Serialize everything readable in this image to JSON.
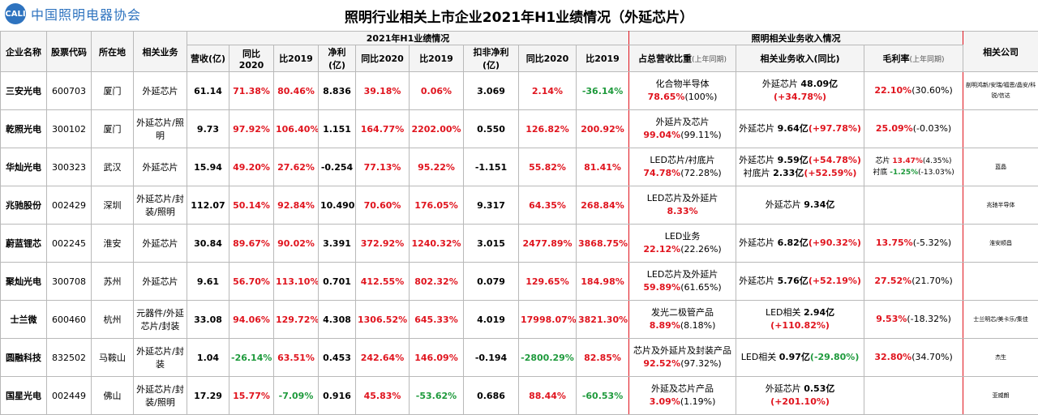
{
  "logo": {
    "badge": "CALI",
    "text": "中国照明电器协会"
  },
  "title": "照明行业相关上市企业2021年H1业绩情况（外延芯片）",
  "group_headers": {
    "h1_performance": "2021年H1业绩情况",
    "lighting_revenue": "照明相关业务收入情况"
  },
  "columns": {
    "company": "企业名称",
    "code": "股票代码",
    "location": "所在地",
    "business": "相关业务",
    "revenue": "营收(亿)",
    "yoy2020": "同比2020",
    "vs2019": "比2019",
    "net_profit": "净利(亿)",
    "np_yoy2020": "同比2020",
    "np_vs2019": "比2019",
    "deducted": "扣非净利(亿)",
    "d_yoy2020": "同比2020",
    "d_vs2019": "比2019",
    "share_main": "占总营收比重",
    "share_sub": "(上年同期)",
    "biz_rev": "相关业务收入(同比)",
    "margin_main": "毛利率",
    "margin_sub": "(上年同期)",
    "related": "相关公司"
  },
  "rows": [
    {
      "company": "三安光电",
      "code": "600703",
      "location": "厦门",
      "business": "外延芯片",
      "revenue": "61.14",
      "yoy2020": "71.38%",
      "vs2019": "80.46%",
      "net_profit": "8.836",
      "np_yoy2020": "39.18%",
      "np_vs2019": "0.06%",
      "deducted": "3.069",
      "d_yoy2020": "2.14%",
      "d_vs2019": "-36.14%",
      "share_label": "化合物半导体",
      "share_pct": "78.65%",
      "share_prev": "(100%)",
      "biz_lines": [
        {
          "label": "外延芯片 ",
          "amount": "48.09亿",
          "change": "(+34.78%)"
        }
      ],
      "margin_lines": [
        {
          "label": "",
          "value": "22.10%",
          "prev": "(30.60%)"
        }
      ],
      "related": "剖明鸿新/安瑞/福恩/晶安/科锐/信达"
    },
    {
      "company": "乾照光电",
      "code": "300102",
      "location": "厦门",
      "business": "外延芯片/照明",
      "revenue": "9.73",
      "yoy2020": "97.92%",
      "vs2019": "106.40%",
      "net_profit": "1.151",
      "np_yoy2020": "164.77%",
      "np_vs2019": "2202.00%",
      "deducted": "0.550",
      "d_yoy2020": "126.82%",
      "d_vs2019": "200.92%",
      "share_label": "外延片及芯片",
      "share_pct": "99.04%",
      "share_prev": "(99.11%)",
      "biz_lines": [
        {
          "label": "外延芯片 ",
          "amount": "9.64亿",
          "change": "(+97.78%)"
        }
      ],
      "margin_lines": [
        {
          "label": "",
          "value": "25.09%",
          "prev": "(-0.03%)"
        }
      ],
      "related": ""
    },
    {
      "company": "华灿光电",
      "code": "300323",
      "location": "武汉",
      "business": "外延芯片",
      "revenue": "15.94",
      "yoy2020": "49.20%",
      "vs2019": "27.62%",
      "net_profit": "-0.254",
      "np_yoy2020": "77.13%",
      "np_vs2019": "95.22%",
      "deducted": "-1.151",
      "d_yoy2020": "55.82%",
      "d_vs2019": "81.41%",
      "share_label": "LED芯片/衬底片",
      "share_pct": "74.78%",
      "share_prev": "(72.28%)",
      "biz_lines": [
        {
          "label": "外延芯片 ",
          "amount": "9.59亿",
          "change": "(+54.78%)"
        },
        {
          "label": "衬底片 ",
          "amount": "2.33亿",
          "change": "(+52.59%)"
        }
      ],
      "margin_lines": [
        {
          "label": "芯片 ",
          "value": "13.47%",
          "prev": "(4.35%)"
        },
        {
          "label": "衬底 ",
          "value": "-1.25%",
          "prev": "(-13.03%)"
        }
      ],
      "related": "蓝晶"
    },
    {
      "company": "兆驰股份",
      "code": "002429",
      "location": "深圳",
      "business": "外延芯片/封装/照明",
      "revenue": "112.07",
      "yoy2020": "50.14%",
      "vs2019": "92.84%",
      "net_profit": "10.490",
      "np_yoy2020": "70.60%",
      "np_vs2019": "176.05%",
      "deducted": "9.317",
      "d_yoy2020": "64.35%",
      "d_vs2019": "268.84%",
      "share_label": "LED芯片及外延片",
      "share_pct": "8.33%",
      "share_prev": "",
      "biz_lines": [
        {
          "label": "外延芯片 ",
          "amount": "9.34亿",
          "change": ""
        }
      ],
      "margin_lines": [],
      "related": "兆驰半导体"
    },
    {
      "company": "蔚蓝锂芯",
      "code": "002245",
      "location": "淮安",
      "business": "外延芯片",
      "revenue": "30.84",
      "yoy2020": "89.67%",
      "vs2019": "90.02%",
      "net_profit": "3.391",
      "np_yoy2020": "372.92%",
      "np_vs2019": "1240.32%",
      "deducted": "3.015",
      "d_yoy2020": "2477.89%",
      "d_vs2019": "3868.75%",
      "share_label": "LED业务",
      "share_pct": "22.12%",
      "share_prev": "(22.26%)",
      "biz_lines": [
        {
          "label": "外延芯片 ",
          "amount": "6.82亿",
          "change": "(+90.32%)"
        }
      ],
      "margin_lines": [
        {
          "label": "",
          "value": "13.75%",
          "prev": "(-5.32%)"
        }
      ],
      "related": "淮安顺昌"
    },
    {
      "company": "聚灿光电",
      "code": "300708",
      "location": "苏州",
      "business": "外延芯片",
      "revenue": "9.61",
      "yoy2020": "56.70%",
      "vs2019": "113.10%",
      "net_profit": "0.701",
      "np_yoy2020": "412.55%",
      "np_vs2019": "802.32%",
      "deducted": "0.079",
      "d_yoy2020": "129.65%",
      "d_vs2019": "184.98%",
      "share_label": "LED芯片及外延片",
      "share_pct": "59.89%",
      "share_prev": "(61.65%)",
      "biz_lines": [
        {
          "label": "外延芯片 ",
          "amount": "5.76亿",
          "change": "(+52.19%)"
        }
      ],
      "margin_lines": [
        {
          "label": "",
          "value": "27.52%",
          "prev": "(21.70%)"
        }
      ],
      "related": ""
    },
    {
      "company": "士兰微",
      "code": "600460",
      "location": "杭州",
      "business": "元器件/外延芯片/封装",
      "revenue": "33.08",
      "yoy2020": "94.06%",
      "vs2019": "129.72%",
      "net_profit": "4.308",
      "np_yoy2020": "1306.52%",
      "np_vs2019": "645.33%",
      "deducted": "4.019",
      "d_yoy2020": "17998.07%",
      "d_vs2019": "3821.30%",
      "share_label": "发光二极管产品",
      "share_pct": "8.89%",
      "share_prev": "(8.18%)",
      "biz_lines": [
        {
          "label": "LED相关 ",
          "amount": "2.94亿",
          "change": "(+110.82%)"
        }
      ],
      "margin_lines": [
        {
          "label": "",
          "value": "9.53%",
          "prev": "(-18.32%)"
        }
      ],
      "related": "士兰明芯/美卡乐/集佳"
    },
    {
      "company": "圆融科技",
      "code": "832502",
      "location": "马鞍山",
      "business": "外延芯片/封装",
      "revenue": "1.04",
      "yoy2020": "-26.14%",
      "vs2019": "63.51%",
      "net_profit": "0.453",
      "np_yoy2020": "242.64%",
      "np_vs2019": "146.09%",
      "deducted": "-0.194",
      "d_yoy2020": "-2800.29%",
      "d_vs2019": "82.85%",
      "share_label": "芯片及外延片及封装产品",
      "share_pct": "92.52%",
      "share_prev": "(97.32%)",
      "biz_lines": [
        {
          "label": "LED相关 ",
          "amount": "0.97亿",
          "change": "(-29.80%)"
        }
      ],
      "margin_lines": [
        {
          "label": "",
          "value": "32.80%",
          "prev": "(34.70%)"
        }
      ],
      "related": "杰生"
    },
    {
      "company": "国星光电",
      "code": "002449",
      "location": "佛山",
      "business": "外延芯片/封装/照明",
      "revenue": "17.29",
      "yoy2020": "15.77%",
      "vs2019": "-7.09%",
      "net_profit": "0.916",
      "np_yoy2020": "45.83%",
      "np_vs2019": "-53.62%",
      "deducted": "0.686",
      "d_yoy2020": "88.44%",
      "d_vs2019": "-60.53%",
      "share_label": "外延及芯片产品",
      "share_pct": "3.09%",
      "share_prev": "(1.19%)",
      "biz_lines": [
        {
          "label": "外延芯片 ",
          "amount": "0.53亿",
          "change": "(+201.10%)"
        }
      ],
      "margin_lines": [],
      "related": "亚威朗"
    }
  ],
  "colors": {
    "positive": "#e0141e",
    "negative": "#1e9a3c",
    "separator": "#e0141e",
    "brand": "#2e73bf"
  }
}
